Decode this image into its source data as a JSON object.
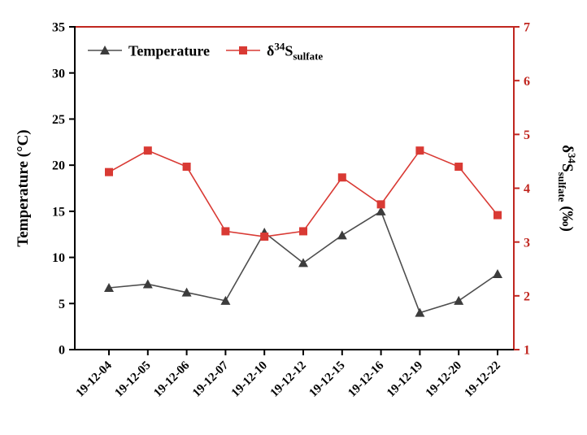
{
  "chart_data": {
    "type": "line",
    "categories": [
      "19-12-04",
      "19-12-05",
      "19-12-06",
      "19-12-07",
      "19-12-10",
      "19-12-12",
      "19-12-15",
      "19-12-16",
      "19-12-19",
      "19-12-20",
      "19-12-22"
    ],
    "series": [
      {
        "name": "Temperature",
        "axis": "left",
        "marker": "triangle",
        "line_color": "#4d4d4d",
        "marker_color": "#3c3c3c",
        "values": [
          6.7,
          7.1,
          6.2,
          5.3,
          12.7,
          9.4,
          12.4,
          15.0,
          4.0,
          5.3,
          8.2
        ]
      },
      {
        "name": "d34S_sulfate",
        "axis": "right",
        "marker": "square",
        "line_color": "#d93a34",
        "marker_color": "#d93a34",
        "values": [
          4.3,
          4.7,
          4.4,
          3.2,
          3.1,
          3.2,
          4.2,
          3.7,
          4.7,
          4.4,
          3.5
        ]
      }
    ],
    "left_axis": {
      "label": "Temperature (°C)",
      "min": 0,
      "max": 35,
      "ticks": [
        0,
        5,
        10,
        15,
        20,
        25,
        30,
        35
      ],
      "color": "#000000"
    },
    "right_axis": {
      "label_parts": {
        "prefix": "δ",
        "sup": "34",
        "main": "S",
        "sub": "sulfate",
        "unit": " (‰)"
      },
      "min": 1,
      "max": 7,
      "ticks": [
        1,
        2,
        3,
        4,
        5,
        6,
        7
      ],
      "color": "#c0261f"
    },
    "legend": {
      "temperature_label": "Temperature",
      "sulfate_label_parts": {
        "prefix": "δ",
        "sup": "34",
        "main": "S",
        "sub": "sulfate"
      }
    },
    "grid": false,
    "legend_position": "top-left-inside",
    "frame_colors": {
      "top": "#c0261f",
      "right": "#c0261f",
      "left": "#000000",
      "bottom": "#000000"
    }
  }
}
